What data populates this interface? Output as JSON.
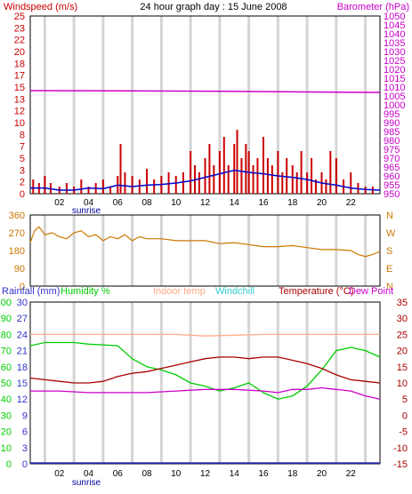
{
  "header": {
    "title": "24 hour graph day : 15 June 2008",
    "left_label": "Windspeed (m/s)",
    "right_label": "Barometer (hPa)"
  },
  "colors": {
    "windspeed": "#cc0000",
    "windavg": "#0000cc",
    "barometer": "#cc00cc",
    "direction": "#cc7700",
    "rainfall": "#3333cc",
    "humidity": "#00cc00",
    "indoor": "#ffaa88",
    "windchill": "#33cccc",
    "temperature": "#aa0000",
    "dewpoint": "#cc00cc",
    "grid": "#d4d4d4",
    "axis": "#000099"
  },
  "time_ticks": [
    "02",
    "04",
    "06",
    "08",
    "10",
    "12",
    "14",
    "16",
    "18",
    "20",
    "22"
  ],
  "sunrise_label": "sunrise",
  "legend": {
    "rainfall": "Rainfall (mm)",
    "humidity": "Humidity %",
    "indoor": "Indoor temp",
    "windchill": "Windchill",
    "temperature": "Temperature (°C)",
    "dewpoint": "Dew Point"
  },
  "chart_data": [
    {
      "type": "bar",
      "title": "24 hour graph day : 15 June 2008",
      "x_range_hours": [
        0,
        24
      ],
      "left_axis": {
        "label": "Windspeed (m/s)",
        "ticks": [
          "0",
          "2",
          "3",
          "5",
          "7",
          "8",
          "10",
          "12",
          "13",
          "15",
          "17",
          "18",
          "20",
          "22",
          "23",
          "25"
        ],
        "ylim": [
          0,
          25
        ]
      },
      "right_axis": {
        "label": "Barometer (hPa)",
        "ticks": [
          "950",
          "955",
          "960",
          "965",
          "970",
          "975",
          "980",
          "985",
          "990",
          "995",
          "1000",
          "1005",
          "1010",
          "1015",
          "1020",
          "1025",
          "1030",
          "1035",
          "1040",
          "1045",
          "1050"
        ],
        "ylim": [
          950,
          1050
        ]
      },
      "series": [
        {
          "name": "Windspeed (m/s)",
          "kind": "gust_bars",
          "x": [
            0.2,
            0.6,
            1.0,
            1.4,
            2.0,
            2.5,
            3.0,
            3.5,
            4.0,
            4.5,
            5.0,
            5.5,
            6.0,
            6.2,
            6.5,
            7.0,
            7.5,
            8.0,
            8.5,
            9.0,
            9.5,
            10.0,
            10.5,
            11.0,
            11.3,
            11.6,
            12.0,
            12.3,
            12.6,
            13.0,
            13.3,
            13.6,
            14.0,
            14.2,
            14.5,
            14.8,
            15.0,
            15.3,
            15.6,
            16.0,
            16.3,
            16.6,
            17.0,
            17.3,
            17.6,
            18.0,
            18.3,
            18.6,
            19.0,
            19.3,
            19.6,
            20.0,
            20.3,
            20.6,
            21.0,
            21.5,
            22.0,
            22.5,
            23.0,
            23.5
          ],
          "y": [
            2,
            1.5,
            2.5,
            1.5,
            1,
            1.5,
            1,
            2,
            1,
            1.5,
            2,
            1,
            2.5,
            7,
            3,
            2.5,
            2,
            3.5,
            2,
            2.5,
            3,
            2.5,
            3,
            6,
            4,
            3,
            5,
            7,
            4,
            6,
            8,
            4,
            7,
            9,
            5,
            7,
            6,
            4,
            5,
            8,
            5,
            4,
            6,
            3,
            5,
            4,
            3,
            6,
            3,
            5,
            2,
            3,
            2,
            6,
            5,
            2,
            3,
            1.5,
            1,
            1
          ]
        },
        {
          "name": "Wind average",
          "kind": "line",
          "x": [
            0,
            1,
            2,
            3,
            4,
            5,
            6,
            7,
            8,
            9,
            10,
            11,
            12,
            13,
            14,
            15,
            16,
            17,
            18,
            19,
            20,
            21,
            22,
            23,
            24
          ],
          "y": [
            0.8,
            0.8,
            0.5,
            0.5,
            0.8,
            0.7,
            1.2,
            1.0,
            1.2,
            1.3,
            1.5,
            1.8,
            2.3,
            2.8,
            3.3,
            3.0,
            2.8,
            2.5,
            2.3,
            2.0,
            1.5,
            1.2,
            0.8,
            0.6,
            0.5
          ]
        },
        {
          "name": "Barometer (hPa)",
          "kind": "line",
          "axis": "right",
          "x": [
            0,
            6,
            12,
            18,
            24
          ],
          "y": [
            1008,
            1007.9,
            1007.7,
            1007.3,
            1007
          ]
        }
      ]
    },
    {
      "type": "line",
      "title": "",
      "x_range_hours": [
        0,
        24
      ],
      "left_axis": {
        "ticks": [
          "360",
          "270",
          "180",
          "90",
          "0"
        ],
        "ylim": [
          0,
          360
        ]
      },
      "right_axis": {
        "ticks": [
          "N",
          "W",
          "S",
          "E",
          "N"
        ]
      },
      "series": [
        {
          "name": "Wind direction",
          "x": [
            0,
            0.3,
            0.6,
            1,
            1.5,
            2,
            2.5,
            3,
            3.5,
            4,
            4.5,
            5,
            5.5,
            6,
            6.5,
            7,
            7.5,
            8,
            9,
            10,
            11,
            12,
            13,
            14,
            15,
            16,
            17,
            18,
            19,
            20,
            21,
            22,
            22.5,
            23,
            23.5,
            24
          ],
          "y": [
            220,
            280,
            300,
            260,
            270,
            250,
            240,
            270,
            280,
            250,
            260,
            230,
            250,
            240,
            260,
            230,
            250,
            240,
            240,
            230,
            230,
            230,
            215,
            220,
            210,
            200,
            200,
            205,
            195,
            185,
            185,
            180,
            160,
            150,
            160,
            175
          ]
        }
      ]
    },
    {
      "type": "line",
      "title": "",
      "x_range_hours": [
        0,
        24
      ],
      "axes": {
        "humidity_ticks": [
          "0",
          "10",
          "20",
          "30",
          "40",
          "50",
          "60",
          "70",
          "80",
          "90",
          "100"
        ],
        "rainfall_ticks": [
          "0",
          "3",
          "6",
          "9",
          "12",
          "15",
          "18",
          "21",
          "24",
          "27",
          "30"
        ],
        "temperature_ticks": [
          "-15",
          "-10",
          "-5",
          "0",
          "5",
          "10",
          "15",
          "20",
          "25",
          "30",
          "35"
        ],
        "humidity_ylim": [
          0,
          100
        ],
        "temperature_ylim": [
          -15,
          35
        ]
      },
      "series": [
        {
          "name": "Indoor temp",
          "x": [
            0,
            6,
            10,
            12,
            16,
            20,
            24
          ],
          "y": [
            25,
            25,
            25,
            24.5,
            25,
            25,
            25
          ]
        },
        {
          "name": "Humidity %",
          "x": [
            0,
            1,
            3,
            4,
            6,
            7,
            8,
            9,
            10,
            11,
            12,
            13,
            14,
            15,
            16,
            17,
            18,
            19,
            20,
            21,
            22,
            23,
            24
          ],
          "y": [
            73,
            75,
            75,
            74,
            73,
            65,
            60,
            58,
            55,
            50,
            48,
            45,
            47,
            50,
            44,
            40,
            42,
            48,
            58,
            70,
            72,
            70,
            66
          ]
        },
        {
          "name": "Temperature (°C)",
          "x": [
            0,
            1,
            2,
            3,
            4,
            5,
            6,
            7,
            8,
            9,
            10,
            11,
            12,
            13,
            14,
            15,
            16,
            17,
            18,
            19,
            20,
            21,
            22,
            23,
            24
          ],
          "y": [
            11.5,
            11,
            10.5,
            10,
            10,
            10.5,
            12,
            13,
            13.5,
            14.5,
            15.5,
            16.5,
            17.5,
            18,
            18,
            17.5,
            18,
            18,
            17,
            16,
            14.5,
            12.5,
            11,
            10.5,
            10
          ]
        },
        {
          "name": "Dew Point",
          "x": [
            0,
            2,
            4,
            6,
            8,
            10,
            12,
            14,
            16,
            17,
            18,
            19,
            20,
            21,
            22,
            23,
            24
          ],
          "y": [
            7.5,
            7.5,
            7,
            7,
            7,
            7.5,
            8,
            8,
            7.5,
            7,
            8,
            8,
            8.5,
            8,
            7.5,
            6,
            5
          ]
        },
        {
          "name": "Rainfall (mm)",
          "x": [
            0,
            24
          ],
          "y": [
            0,
            0
          ]
        }
      ]
    }
  ]
}
